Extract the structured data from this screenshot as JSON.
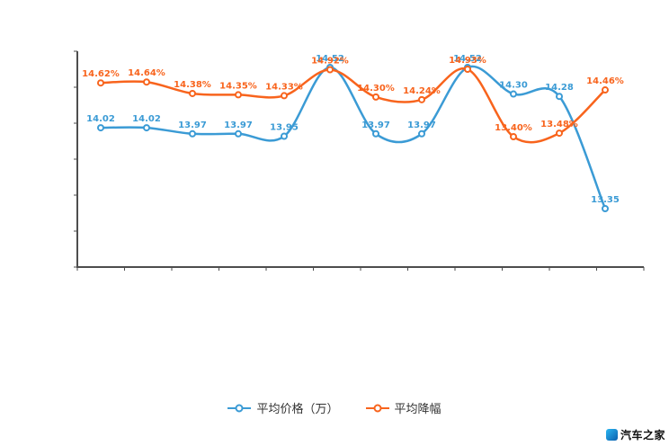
{
  "chart_data": {
    "type": "line",
    "title": "",
    "grid": false,
    "legend_position": "bottom",
    "x_axis_labels_visible": false,
    "categories": [
      "",
      "",
      "",
      "",
      "",
      "",
      "",
      "",
      "",
      "",
      "",
      ""
    ],
    "series": [
      {
        "name": "平均价格（万）",
        "color": "#3b9bd5",
        "marker": "hollow-circle",
        "values": [
          14.02,
          14.02,
          13.97,
          13.97,
          13.95,
          14.52,
          13.97,
          13.97,
          14.52,
          14.3,
          14.28,
          13.35
        ],
        "labels": [
          "14.02",
          "14.02",
          "13.97",
          "13.97",
          "13.95",
          "14.52",
          "13.97",
          "13.97",
          "14.52",
          "14.30",
          "14.28",
          "13.35"
        ]
      },
      {
        "name": "平均降幅",
        "color": "#f8641d",
        "marker": "hollow-circle",
        "values": [
          14.62,
          14.64,
          14.38,
          14.35,
          14.33,
          14.92,
          14.3,
          14.24,
          14.93,
          13.4,
          13.48,
          14.46
        ],
        "labels": [
          "14.62%",
          "14.64%",
          "14.38%",
          "14.35%",
          "14.33%",
          "14.92%",
          "14.30%",
          "14.24%",
          "14.93%",
          "13.40%",
          "13.48%",
          "14.46%"
        ]
      }
    ]
  },
  "colors": {
    "axis": "#4d4d4d",
    "background": "#ffffff"
  },
  "watermark": {
    "text": "汽车之家"
  }
}
